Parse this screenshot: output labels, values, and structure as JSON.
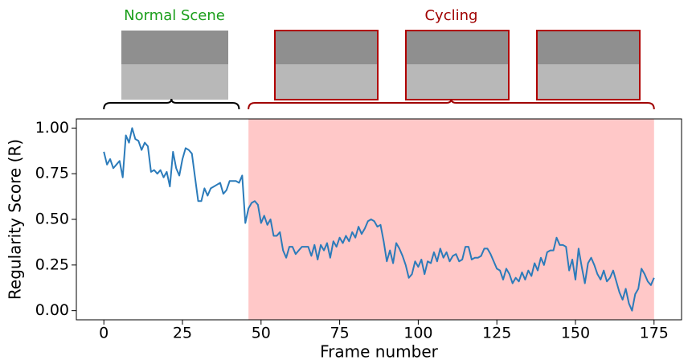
{
  "chart_data": {
    "type": "line",
    "xlabel": "Frame number",
    "ylabel": "Regularity Score (R)",
    "xlim": [
      -8.75,
      183.75
    ],
    "ylim": [
      -0.05,
      1.05
    ],
    "xticks": [
      0,
      25,
      50,
      75,
      100,
      125,
      150,
      175
    ],
    "yticks": [
      {
        "value": 0,
        "label": "0.00"
      },
      0.25,
      {
        "value": 0.5,
        "label": "0.50"
      },
      0.75,
      {
        "value": 1,
        "label": "1.00"
      }
    ],
    "regions": [
      {
        "label": "Normal Scene",
        "color": "#1a9e1a",
        "start": 0,
        "end": 43
      },
      {
        "label": "Cycling",
        "color": "#a00000",
        "start": 46,
        "end": 175,
        "fill": "#ffc8c8"
      }
    ],
    "series": [
      {
        "color": "#2b7bba",
        "x": [
          0,
          1,
          2,
          3,
          4,
          5,
          6,
          7,
          8,
          9,
          10,
          11,
          12,
          13,
          14,
          15,
          16,
          17,
          18,
          19,
          20,
          21,
          22,
          23,
          24,
          25,
          26,
          27,
          28,
          29,
          30,
          31,
          32,
          33,
          34,
          35,
          36,
          37,
          38,
          39,
          40,
          41,
          42,
          43,
          44,
          45,
          46,
          47,
          48,
          49,
          50,
          51,
          52,
          53,
          54,
          55,
          56,
          57,
          58,
          59,
          60,
          61,
          62,
          63,
          64,
          65,
          66,
          67,
          68,
          69,
          70,
          71,
          72,
          73,
          74,
          75,
          76,
          77,
          78,
          79,
          80,
          81,
          82,
          83,
          84,
          85,
          86,
          87,
          88,
          89,
          90,
          91,
          92,
          93,
          94,
          95,
          96,
          97,
          98,
          99,
          100,
          101,
          102,
          103,
          104,
          105,
          106,
          107,
          108,
          109,
          110,
          111,
          112,
          113,
          114,
          115,
          116,
          117,
          118,
          119,
          120,
          121,
          122,
          123,
          124,
          125,
          126,
          127,
          128,
          129,
          130,
          131,
          132,
          133,
          134,
          135,
          136,
          137,
          138,
          139,
          140,
          141,
          142,
          143,
          144,
          145,
          146,
          147,
          148,
          149,
          150,
          151,
          152,
          153,
          154,
          155,
          156,
          157,
          158,
          159,
          160,
          161,
          162,
          163,
          164,
          165,
          166,
          167,
          168,
          169,
          170,
          171,
          172,
          173,
          174,
          175
        ],
        "values": [
          0.87,
          0.8,
          0.83,
          0.78,
          0.8,
          0.82,
          0.73,
          0.96,
          0.92,
          1.0,
          0.94,
          0.93,
          0.88,
          0.92,
          0.9,
          0.76,
          0.77,
          0.75,
          0.77,
          0.73,
          0.76,
          0.68,
          0.87,
          0.78,
          0.74,
          0.83,
          0.89,
          0.88,
          0.86,
          0.73,
          0.6,
          0.6,
          0.67,
          0.63,
          0.67,
          0.68,
          0.69,
          0.7,
          0.64,
          0.66,
          0.71,
          0.71,
          0.71,
          0.7,
          0.74,
          0.48,
          0.56,
          0.59,
          0.6,
          0.58,
          0.48,
          0.52,
          0.47,
          0.5,
          0.41,
          0.41,
          0.43,
          0.33,
          0.29,
          0.35,
          0.35,
          0.31,
          0.33,
          0.35,
          0.35,
          0.35,
          0.3,
          0.36,
          0.28,
          0.36,
          0.33,
          0.37,
          0.29,
          0.38,
          0.35,
          0.4,
          0.37,
          0.41,
          0.38,
          0.43,
          0.4,
          0.46,
          0.42,
          0.45,
          0.49,
          0.5,
          0.49,
          0.46,
          0.47,
          0.38,
          0.27,
          0.33,
          0.26,
          0.37,
          0.34,
          0.3,
          0.25,
          0.18,
          0.2,
          0.27,
          0.24,
          0.28,
          0.2,
          0.27,
          0.26,
          0.32,
          0.27,
          0.34,
          0.29,
          0.32,
          0.27,
          0.3,
          0.31,
          0.27,
          0.28,
          0.35,
          0.35,
          0.28,
          0.29,
          0.29,
          0.3,
          0.34,
          0.34,
          0.31,
          0.27,
          0.23,
          0.22,
          0.17,
          0.23,
          0.2,
          0.15,
          0.18,
          0.16,
          0.21,
          0.17,
          0.22,
          0.19,
          0.26,
          0.22,
          0.29,
          0.25,
          0.32,
          0.33,
          0.33,
          0.4,
          0.36,
          0.36,
          0.35,
          0.22,
          0.28,
          0.17,
          0.34,
          0.24,
          0.15,
          0.26,
          0.29,
          0.25,
          0.2,
          0.17,
          0.22,
          0.16,
          0.18,
          0.22,
          0.16,
          0.1,
          0.06,
          0.12,
          0.04,
          0.0,
          0.09,
          0.12,
          0.23,
          0.2,
          0.16,
          0.14,
          0.18
        ]
      }
    ]
  }
}
